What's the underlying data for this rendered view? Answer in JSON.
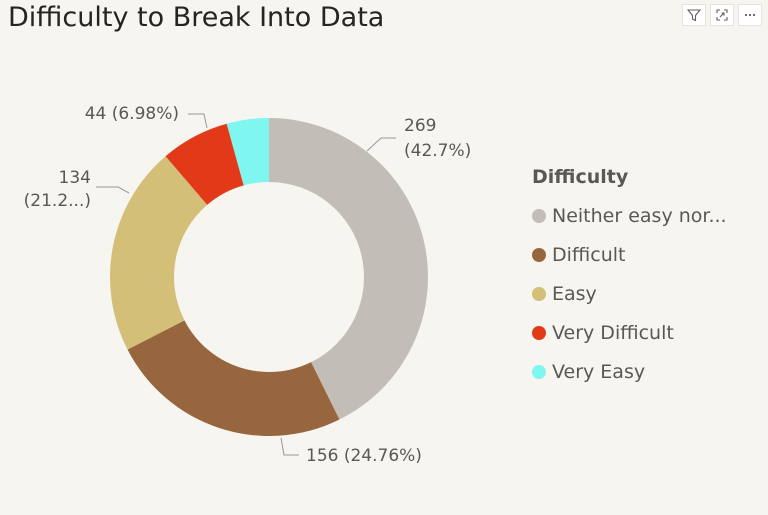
{
  "visual": {
    "title": "Difficulty to Break Into Data"
  },
  "toolbar": {
    "icons": [
      "filter-icon",
      "focus-mode-icon",
      "more-options-icon"
    ]
  },
  "legend": {
    "title": "Difficulty",
    "items": [
      {
        "label": "Neither easy nor...",
        "color": "#c3bdb7"
      },
      {
        "label": "Difficult",
        "color": "#98663e"
      },
      {
        "label": "Easy",
        "color": "#d4bf78"
      },
      {
        "label": "Very Difficult",
        "color": "#e23a18"
      },
      {
        "label": "Very Easy",
        "color": "#80f6f0"
      }
    ]
  },
  "chart_data": {
    "type": "pie",
    "variant": "donut",
    "title": "Difficulty to Break Into Data",
    "legend_title": "Difficulty",
    "legend_position": "right",
    "slices": [
      {
        "label": "Neither easy nor...",
        "value": 269,
        "percent": 42.7,
        "color": "#c3bdb7",
        "data_label_lines": [
          "269",
          "(42.7%)"
        ]
      },
      {
        "label": "Difficult",
        "value": 156,
        "percent": 24.76,
        "color": "#98663e",
        "data_label_lines": [
          "156 (24.76%)"
        ]
      },
      {
        "label": "Easy",
        "value": 134,
        "percent": 21.27,
        "color": "#d4bf78",
        "data_label_lines": [
          "134",
          "(21.2...)"
        ]
      },
      {
        "label": "Very Difficult",
        "value": 44,
        "percent": 6.98,
        "color": "#e23a18",
        "data_label_lines": [
          "44 (6.98%)"
        ]
      },
      {
        "label": "Very Easy",
        "value": 27,
        "percent": 4.29,
        "color": "#80f6f0",
        "data_label_lines": []
      }
    ]
  }
}
